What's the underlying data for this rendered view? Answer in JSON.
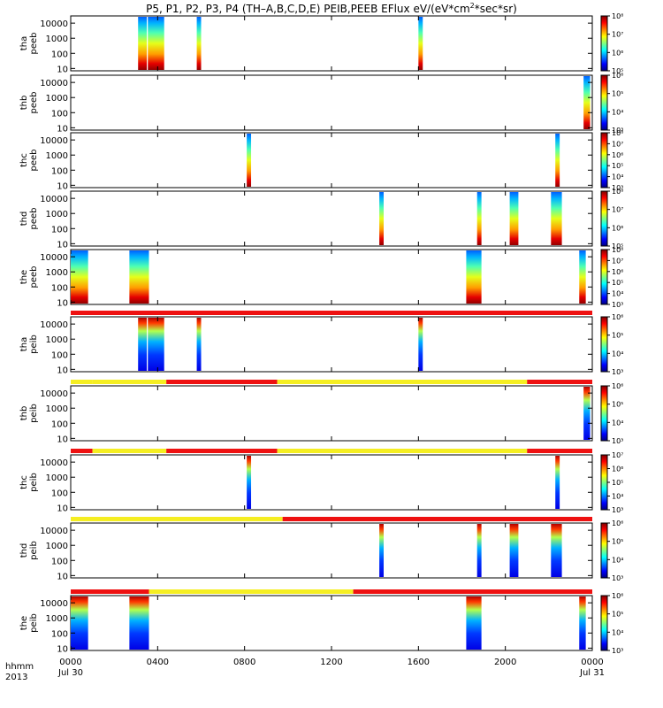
{
  "chart_data": {
    "type": "heatmap",
    "title": "P5, P1, P2, P3, P4 (TH–A,B,C,D,E) PEIB,PEEB EFlux eV/(eV*cm²*sec*sr)",
    "title_main": "P5, P1, P2, P3, P4 (TH–A,B,C,D,E) PEIB,PEEB EFlux eV/(eV*cm",
    "title_sup": "2",
    "title_end": "*sec*sr)",
    "x_axis": {
      "corner_label_line1": "hhmm",
      "corner_label_line2": "2013",
      "range_hours": [
        0,
        24
      ],
      "ticks": [
        {
          "hour": 0,
          "label": "0000",
          "sub": "Jul 30"
        },
        {
          "hour": 4,
          "label": "0400",
          "sub": ""
        },
        {
          "hour": 8,
          "label": "0800",
          "sub": ""
        },
        {
          "hour": 12,
          "label": "1200",
          "sub": ""
        },
        {
          "hour": 16,
          "label": "1600",
          "sub": ""
        },
        {
          "hour": 20,
          "label": "2000",
          "sub": ""
        },
        {
          "hour": 24,
          "label": "0000",
          "sub": "Jul 31"
        }
      ]
    },
    "y_axis": {
      "scale": "log",
      "range": [
        7,
        30000
      ],
      "tick_labels": [
        "10",
        "100",
        "1000",
        "10000"
      ]
    },
    "panels": [
      {
        "probe": "tha",
        "product": "peeb",
        "bursts": [
          [
            3.1,
            3.5
          ],
          [
            3.55,
            4.3
          ],
          [
            5.8,
            6.0
          ],
          [
            16.0,
            16.2
          ]
        ],
        "cbar": {
          "min_exp": 5,
          "max_exp": 8,
          "labels": [
            "10⁵",
            "10⁶",
            "10⁷",
            "10⁸"
          ]
        },
        "mode_bar": null
      },
      {
        "probe": "thb",
        "product": "peeb",
        "bursts": [
          [
            23.6,
            23.9
          ]
        ],
        "cbar": {
          "min_exp": 3,
          "max_exp": 6,
          "labels": [
            "10³",
            "10⁴",
            "10⁵",
            "10⁶"
          ]
        },
        "mode_bar": null
      },
      {
        "probe": "thc",
        "product": "peeb",
        "bursts": [
          [
            8.1,
            8.3
          ],
          [
            22.3,
            22.5
          ]
        ],
        "cbar": {
          "min_exp": 3,
          "max_exp": 8,
          "labels": [
            "10³",
            "10⁴",
            "10⁵",
            "10⁶",
            "10⁷",
            "10⁸"
          ]
        },
        "mode_bar": null
      },
      {
        "probe": "thd",
        "product": "peeb",
        "bursts": [
          [
            14.2,
            14.4
          ],
          [
            18.7,
            18.9
          ],
          [
            20.2,
            20.6
          ],
          [
            22.1,
            22.6
          ]
        ],
        "cbar": {
          "min_exp": 5,
          "max_exp": 8,
          "labels": [
            "10⁵",
            "10⁶",
            "10⁷",
            "10⁸"
          ]
        },
        "mode_bar": null
      },
      {
        "probe": "the",
        "product": "peeb",
        "bursts": [
          [
            0.0,
            0.8
          ],
          [
            2.7,
            3.6
          ],
          [
            18.2,
            18.9
          ],
          [
            23.4,
            23.7
          ]
        ],
        "cbar": {
          "min_exp": 3,
          "max_exp": 8,
          "labels": [
            "10³",
            "10⁴",
            "10⁵",
            "10⁶",
            "10⁷",
            "10⁸"
          ]
        },
        "mode_bar": null
      },
      {
        "probe": "tha",
        "product": "peib",
        "bursts": [
          [
            3.1,
            3.5
          ],
          [
            3.55,
            4.3
          ],
          [
            5.8,
            6.0
          ],
          [
            16.0,
            16.2
          ]
        ],
        "cbar": {
          "min_exp": 3,
          "max_exp": 6,
          "labels": [
            "10³",
            "10⁴",
            "10⁵",
            "10⁶"
          ]
        },
        "mode_bar": [
          [
            0,
            24,
            "red"
          ]
        ]
      },
      {
        "probe": "thb",
        "product": "peib",
        "bursts": [
          [
            23.6,
            23.9
          ]
        ],
        "cbar": {
          "min_exp": 3,
          "max_exp": 6,
          "labels": [
            "10³",
            "10⁴",
            "10⁵",
            "10⁶"
          ]
        },
        "mode_bar": [
          [
            0,
            1.0,
            "yellow"
          ],
          [
            1.0,
            4.4,
            "yellow"
          ],
          [
            4.4,
            9.5,
            "red"
          ],
          [
            9.5,
            21.0,
            "yellow"
          ],
          [
            21.0,
            24,
            "red"
          ]
        ]
      },
      {
        "probe": "thc",
        "product": "peib",
        "bursts": [
          [
            8.1,
            8.3
          ],
          [
            22.3,
            22.5
          ]
        ],
        "cbar": {
          "min_exp": 3,
          "max_exp": 7,
          "labels": [
            "10³",
            "10⁴",
            "10⁵",
            "10⁶",
            "10⁷"
          ]
        },
        "mode_bar": [
          [
            0,
            1.0,
            "red"
          ],
          [
            1.0,
            4.4,
            "yellow"
          ],
          [
            4.4,
            9.5,
            "red"
          ],
          [
            9.5,
            21.0,
            "yellow"
          ],
          [
            21.0,
            24,
            "red"
          ]
        ]
      },
      {
        "probe": "thd",
        "product": "peib",
        "bursts": [
          [
            14.2,
            14.4
          ],
          [
            18.7,
            18.9
          ],
          [
            20.2,
            20.6
          ],
          [
            22.1,
            22.6
          ]
        ],
        "cbar": {
          "min_exp": 3,
          "max_exp": 6,
          "labels": [
            "10³",
            "10⁴",
            "10⁵",
            "10⁶"
          ]
        },
        "mode_bar": [
          [
            0,
            9.75,
            "yellow"
          ],
          [
            9.75,
            24,
            "red"
          ]
        ]
      },
      {
        "probe": "the",
        "product": "peib",
        "bursts": [
          [
            0.0,
            0.8
          ],
          [
            2.7,
            3.6
          ],
          [
            18.2,
            18.9
          ],
          [
            23.4,
            23.7
          ]
        ],
        "cbar": {
          "min_exp": 3,
          "max_exp": 6,
          "labels": [
            "10³",
            "10⁴",
            "10⁵",
            "10⁶"
          ]
        },
        "mode_bar": [
          [
            0,
            3.6,
            "red"
          ],
          [
            3.6,
            13.0,
            "yellow"
          ],
          [
            13.0,
            24,
            "red"
          ]
        ]
      }
    ],
    "colors": {
      "mode_red": "#ee1111",
      "mode_yellow": "#f5ee22"
    }
  }
}
